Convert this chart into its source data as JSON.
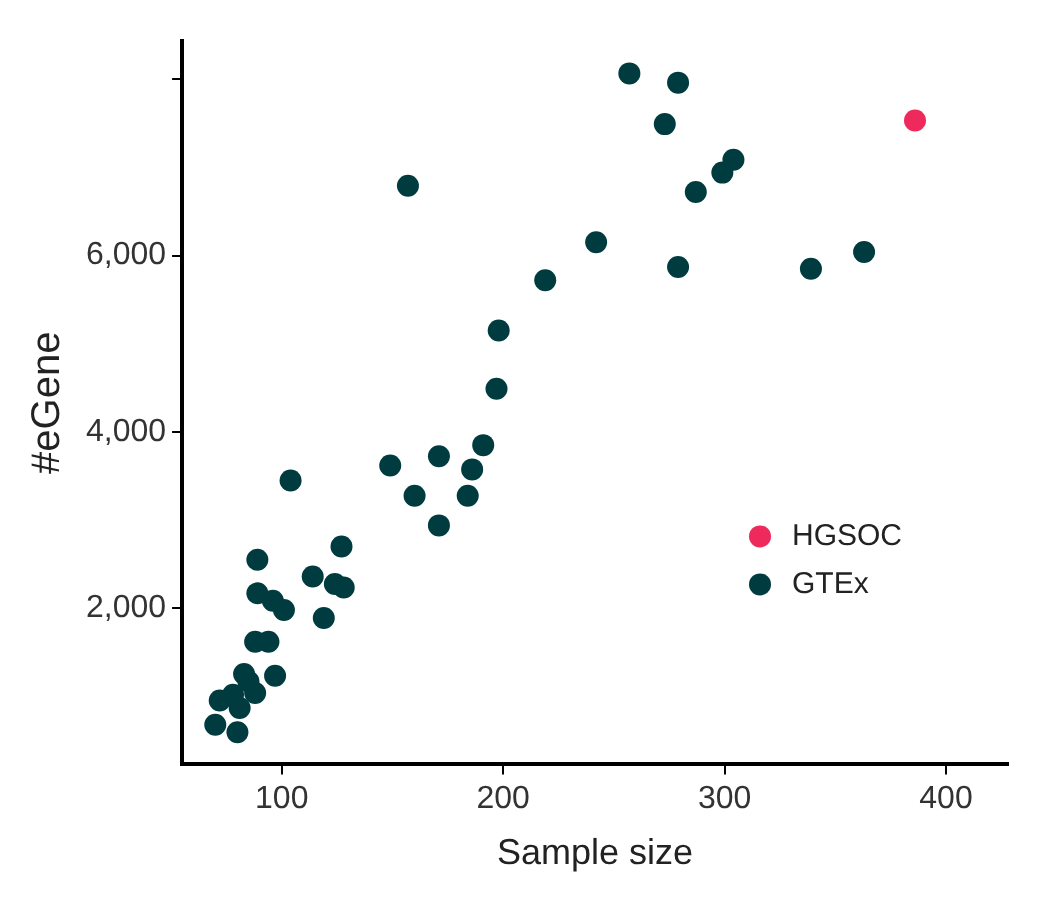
{
  "chart_data": {
    "type": "scatter",
    "xlabel": "Sample size",
    "ylabel": "#eGene",
    "xlim": [
      55,
      428
    ],
    "xticks": [
      100,
      200,
      300,
      400
    ],
    "ylim": [
      230,
      8430
    ],
    "yticks": [
      {
        "value": 2000,
        "label": "2,000"
      },
      {
        "value": 4000,
        "label": "4,000"
      },
      {
        "value": 6000,
        "label": "6,000"
      },
      {
        "value": 8000,
        "label": null
      }
    ],
    "grid": false,
    "legend": "bottom right",
    "marker": "circle",
    "series": [
      {
        "name": "HGSOC",
        "color": "#ee2a5d",
        "x": [
          386
        ],
        "values": [
          7530
        ]
      },
      {
        "name": "GTEx",
        "color": "#003c3f",
        "x": [
          257,
          279,
          273,
          304,
          299,
          287,
          242,
          219,
          198,
          197,
          279,
          339,
          363,
          157,
          191,
          186,
          184,
          171,
          160,
          149,
          171,
          104,
          127,
          114,
          124,
          128,
          119,
          89,
          89,
          96,
          101,
          88,
          94,
          97,
          83,
          85,
          88,
          78,
          72,
          81,
          70,
          80
        ],
        "values": [
          8065,
          7960,
          7490,
          7085,
          6940,
          6720,
          6150,
          5720,
          5150,
          4490,
          5870,
          5850,
          6040,
          6790,
          3850,
          3575,
          3275,
          3725,
          3275,
          3620,
          2940,
          3450,
          2700,
          2360,
          2275,
          2235,
          1890,
          2550,
          2170,
          2085,
          1980,
          1620,
          1620,
          1235,
          1255,
          1170,
          1040,
          1020,
          955,
          870,
          680,
          595
        ]
      }
    ]
  }
}
